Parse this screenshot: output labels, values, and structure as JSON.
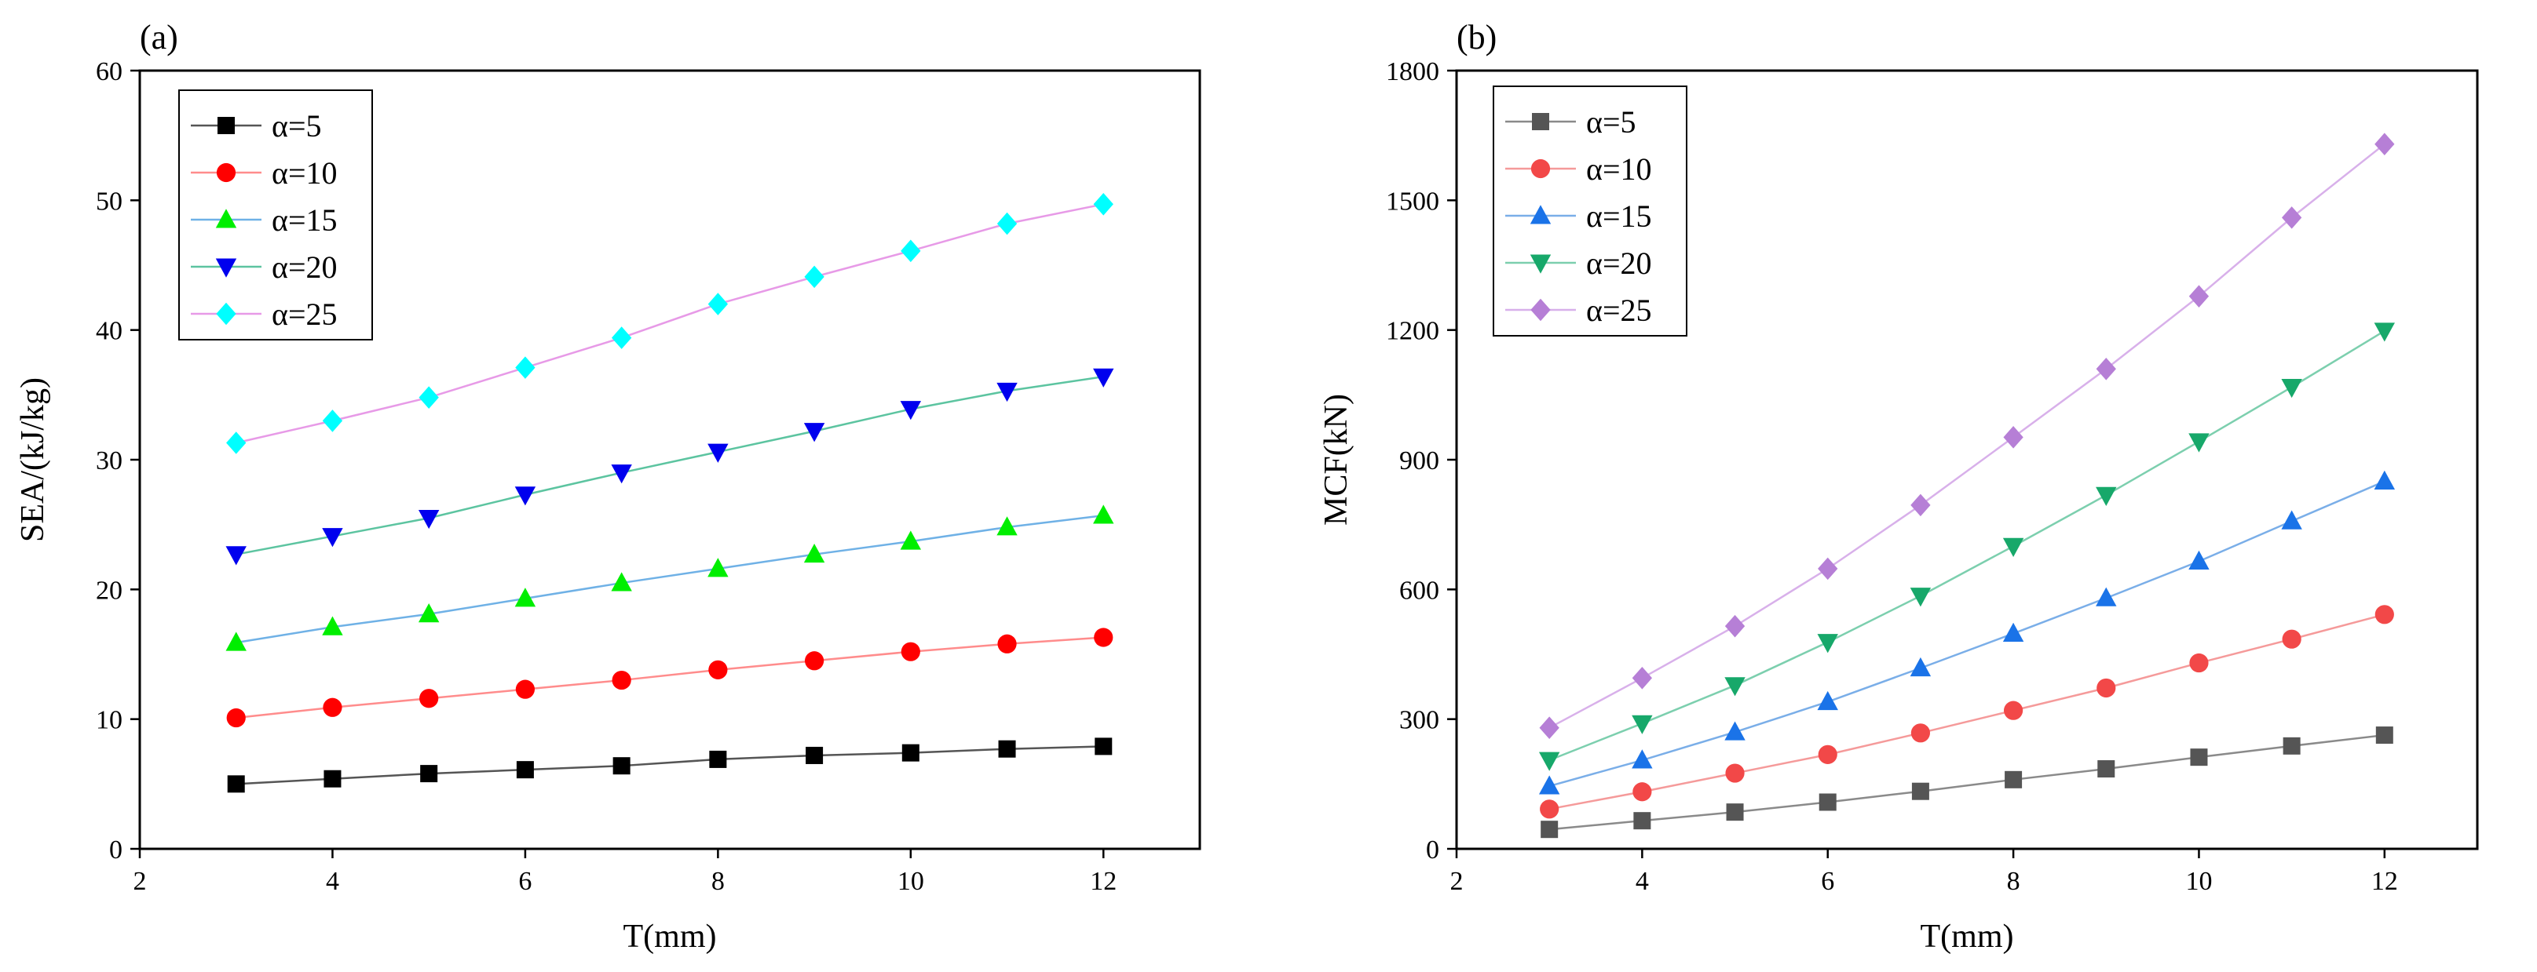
{
  "chart_data": [
    {
      "panel_label": "(a)",
      "type": "line",
      "marker_line": true,
      "xlabel": "T(mm)",
      "ylabel": "SEA/(kJ/kg)",
      "xlim": [
        2,
        13
      ],
      "ylim": [
        0,
        60
      ],
      "xticks": [
        2,
        4,
        6,
        8,
        10,
        12
      ],
      "yticks": [
        0,
        10,
        20,
        30,
        40,
        50,
        60
      ],
      "legend_position": "top-left",
      "x": [
        3,
        4,
        5,
        6,
        7,
        8,
        9,
        10,
        11,
        12
      ],
      "series": [
        {
          "name": "α=5",
          "marker": "square",
          "marker_color": "#000000",
          "line_color": "#555555",
          "values": [
            5.0,
            5.4,
            5.8,
            6.1,
            6.4,
            6.9,
            7.2,
            7.4,
            7.7,
            7.9
          ]
        },
        {
          "name": "α=10",
          "marker": "circle",
          "marker_color": "#ff0000",
          "line_color": "#ff8c8c",
          "values": [
            10.1,
            10.9,
            11.6,
            12.3,
            13.0,
            13.8,
            14.5,
            15.2,
            15.8,
            16.3
          ]
        },
        {
          "name": "α=15",
          "marker": "triangle-up",
          "marker_color": "#00ee00",
          "line_color": "#6fb1e6",
          "values": [
            15.9,
            17.1,
            18.1,
            19.3,
            20.5,
            21.6,
            22.7,
            23.7,
            24.8,
            25.7
          ]
        },
        {
          "name": "α=20",
          "marker": "triangle-down",
          "marker_color": "#0000ee",
          "line_color": "#5cc4a0",
          "values": [
            22.7,
            24.1,
            25.5,
            27.3,
            29.0,
            30.6,
            32.2,
            33.9,
            35.3,
            36.4
          ]
        },
        {
          "name": "α=25",
          "marker": "diamond",
          "marker_color": "#00ffff",
          "line_color": "#e79ae7",
          "values": [
            31.3,
            33.0,
            34.8,
            37.1,
            39.4,
            42.0,
            44.1,
            46.1,
            48.2,
            49.7
          ]
        }
      ]
    },
    {
      "panel_label": "(b)",
      "type": "line",
      "marker_line": true,
      "xlabel": "T(mm)",
      "ylabel": "MCF(kN)",
      "xlim": [
        2,
        13
      ],
      "ylim": [
        0,
        1800
      ],
      "xticks": [
        2,
        4,
        6,
        8,
        10,
        12
      ],
      "yticks": [
        0,
        300,
        600,
        900,
        1200,
        1500,
        1800
      ],
      "legend_position": "top-left",
      "x": [
        3,
        4,
        5,
        6,
        7,
        8,
        9,
        10,
        11,
        12
      ],
      "series": [
        {
          "name": "α=5",
          "marker": "square",
          "marker_color": "#555555",
          "line_color": "#8a8a8a",
          "values": [
            45,
            65,
            85,
            108,
            133,
            160,
            185,
            212,
            238,
            263
          ]
        },
        {
          "name": "α=10",
          "marker": "circle",
          "marker_color": "#f24848",
          "line_color": "#f59a9a",
          "values": [
            92,
            132,
            175,
            218,
            268,
            320,
            372,
            430,
            485,
            542
          ]
        },
        {
          "name": "α=15",
          "marker": "triangle-up",
          "marker_color": "#1a73e8",
          "line_color": "#7aaee8",
          "values": [
            145,
            205,
            270,
            340,
            418,
            498,
            580,
            665,
            758,
            850
          ]
        },
        {
          "name": "α=20",
          "marker": "triangle-down",
          "marker_color": "#17a86a",
          "line_color": "#7ccfae",
          "values": [
            205,
            290,
            378,
            478,
            585,
            700,
            818,
            942,
            1068,
            1198
          ]
        },
        {
          "name": "α=25",
          "marker": "diamond",
          "marker_color": "#b67fd6",
          "line_color": "#d8b0ea",
          "values": [
            280,
            395,
            515,
            648,
            795,
            952,
            1110,
            1278,
            1460,
            1630
          ]
        }
      ]
    }
  ]
}
